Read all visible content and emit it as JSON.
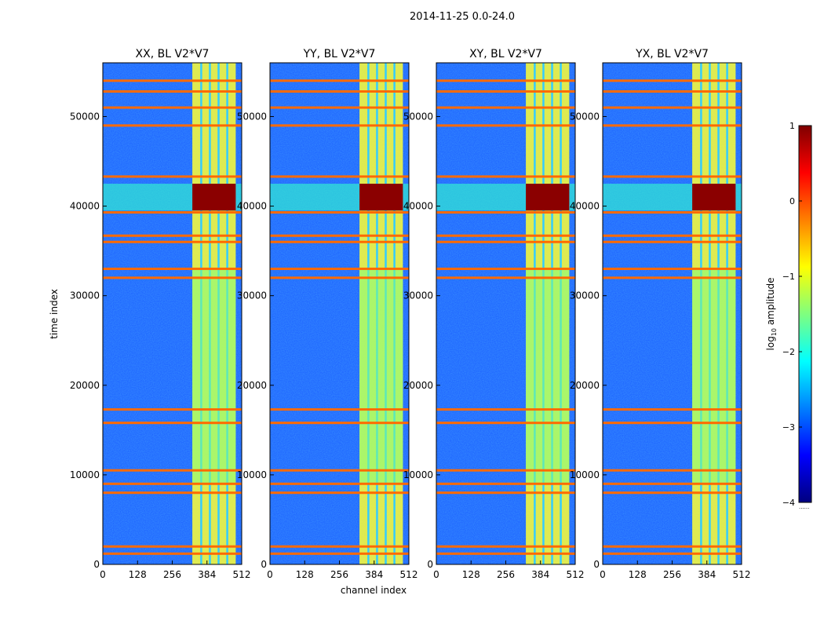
{
  "figure": {
    "suptitle": "2014-11-25 0.0-24.0"
  },
  "chart_data": {
    "type": "heatmap",
    "xlabel": "channel index",
    "ylabel": "time index",
    "xlim": [
      0,
      512
    ],
    "ylim": [
      0,
      56000
    ],
    "x_ticks": [
      0,
      128,
      256,
      384,
      512
    ],
    "y_ticks": [
      0,
      10000,
      20000,
      30000,
      40000,
      50000
    ],
    "panels": [
      {
        "title": "XX, BL V2*V7",
        "hot_rows": [
          [
            39500,
            42500
          ]
        ],
        "hot_channels": [
          330,
          490
        ]
      },
      {
        "title": "YY, BL V2*V7",
        "hot_rows": [
          [
            39500,
            42500
          ]
        ],
        "hot_channels": [
          330,
          490
        ]
      },
      {
        "title": "XY, BL V2*V7",
        "hot_rows": [
          [
            39500,
            42500
          ]
        ],
        "hot_channels": [
          330,
          490
        ]
      },
      {
        "title": "YX, BL V2*V7",
        "hot_rows": [
          [
            39500,
            42500
          ]
        ],
        "hot_channels": [
          330,
          490
        ]
      }
    ],
    "flagged_rows": [
      1200,
      2000,
      8000,
      9000,
      10500,
      15800,
      17300,
      32000,
      33000,
      36000,
      36700,
      39300,
      43300,
      49000,
      51000,
      52800,
      54000
    ],
    "colorbar": {
      "label": "log10 amplitude",
      "label_base": "log",
      "label_sub": "10",
      "label_rest": " amplitude",
      "range": [
        -4,
        1
      ],
      "ticks": [
        "1",
        "0",
        "−1",
        "−2",
        "−3",
        "−4"
      ],
      "footer": "......"
    },
    "colors": {
      "flag": "#ff6a00",
      "background": "#1e64ff",
      "hot": "#8b0000",
      "mid": "#7fff7f",
      "cold": "#00007f"
    }
  }
}
